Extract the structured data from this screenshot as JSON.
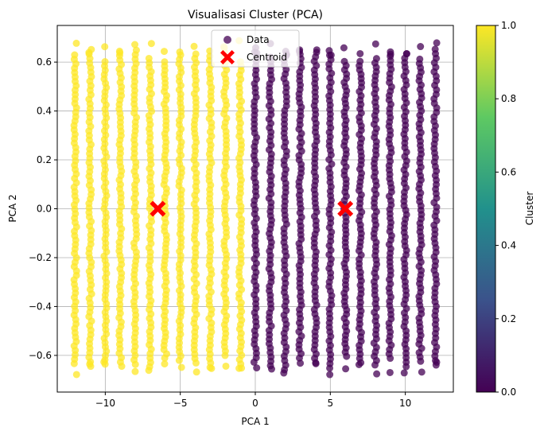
{
  "chart_data": {
    "type": "scatter",
    "title": "Visualisasi Cluster (PCA)",
    "xlabel": "PCA 1",
    "ylabel": "PCA 2",
    "xlim": [
      -13.2,
      13.2
    ],
    "ylim": [
      -0.75,
      0.75
    ],
    "xticks": [
      -10,
      -5,
      0,
      5,
      10
    ],
    "yticks": [
      -0.6,
      -0.4,
      -0.2,
      0.0,
      0.2,
      0.4,
      0.6
    ],
    "grid": true,
    "legend": {
      "placement": "upper center",
      "entries": [
        "Data",
        "Centroid"
      ]
    },
    "colorbar": {
      "label": "Cluster",
      "range": [
        0.0,
        1.0
      ],
      "ticks": [
        "0.0",
        "0.2",
        "0.4",
        "0.6",
        "0.8",
        "1.0"
      ],
      "colormap": "viridis"
    },
    "series": [
      {
        "name": "Data",
        "cluster": 1,
        "color": "#fde725",
        "x_values": [
          -12,
          -11,
          -10,
          -9,
          -8,
          -7,
          -6,
          -5,
          -4,
          -3,
          -2,
          -1
        ],
        "y_range": [
          -0.68,
          0.69
        ]
      },
      {
        "name": "Data",
        "cluster": 0,
        "color": "#440154",
        "x_values": [
          0,
          1,
          2,
          3,
          4,
          5,
          6,
          7,
          8,
          9,
          10,
          11,
          12
        ],
        "y_range": [
          -0.68,
          0.68
        ]
      },
      {
        "name": "Centroid",
        "color": "#ff0000",
        "marker": "X",
        "points": [
          {
            "x": -6.5,
            "y": 0.0
          },
          {
            "x": 6.0,
            "y": 0.0
          }
        ]
      }
    ]
  }
}
